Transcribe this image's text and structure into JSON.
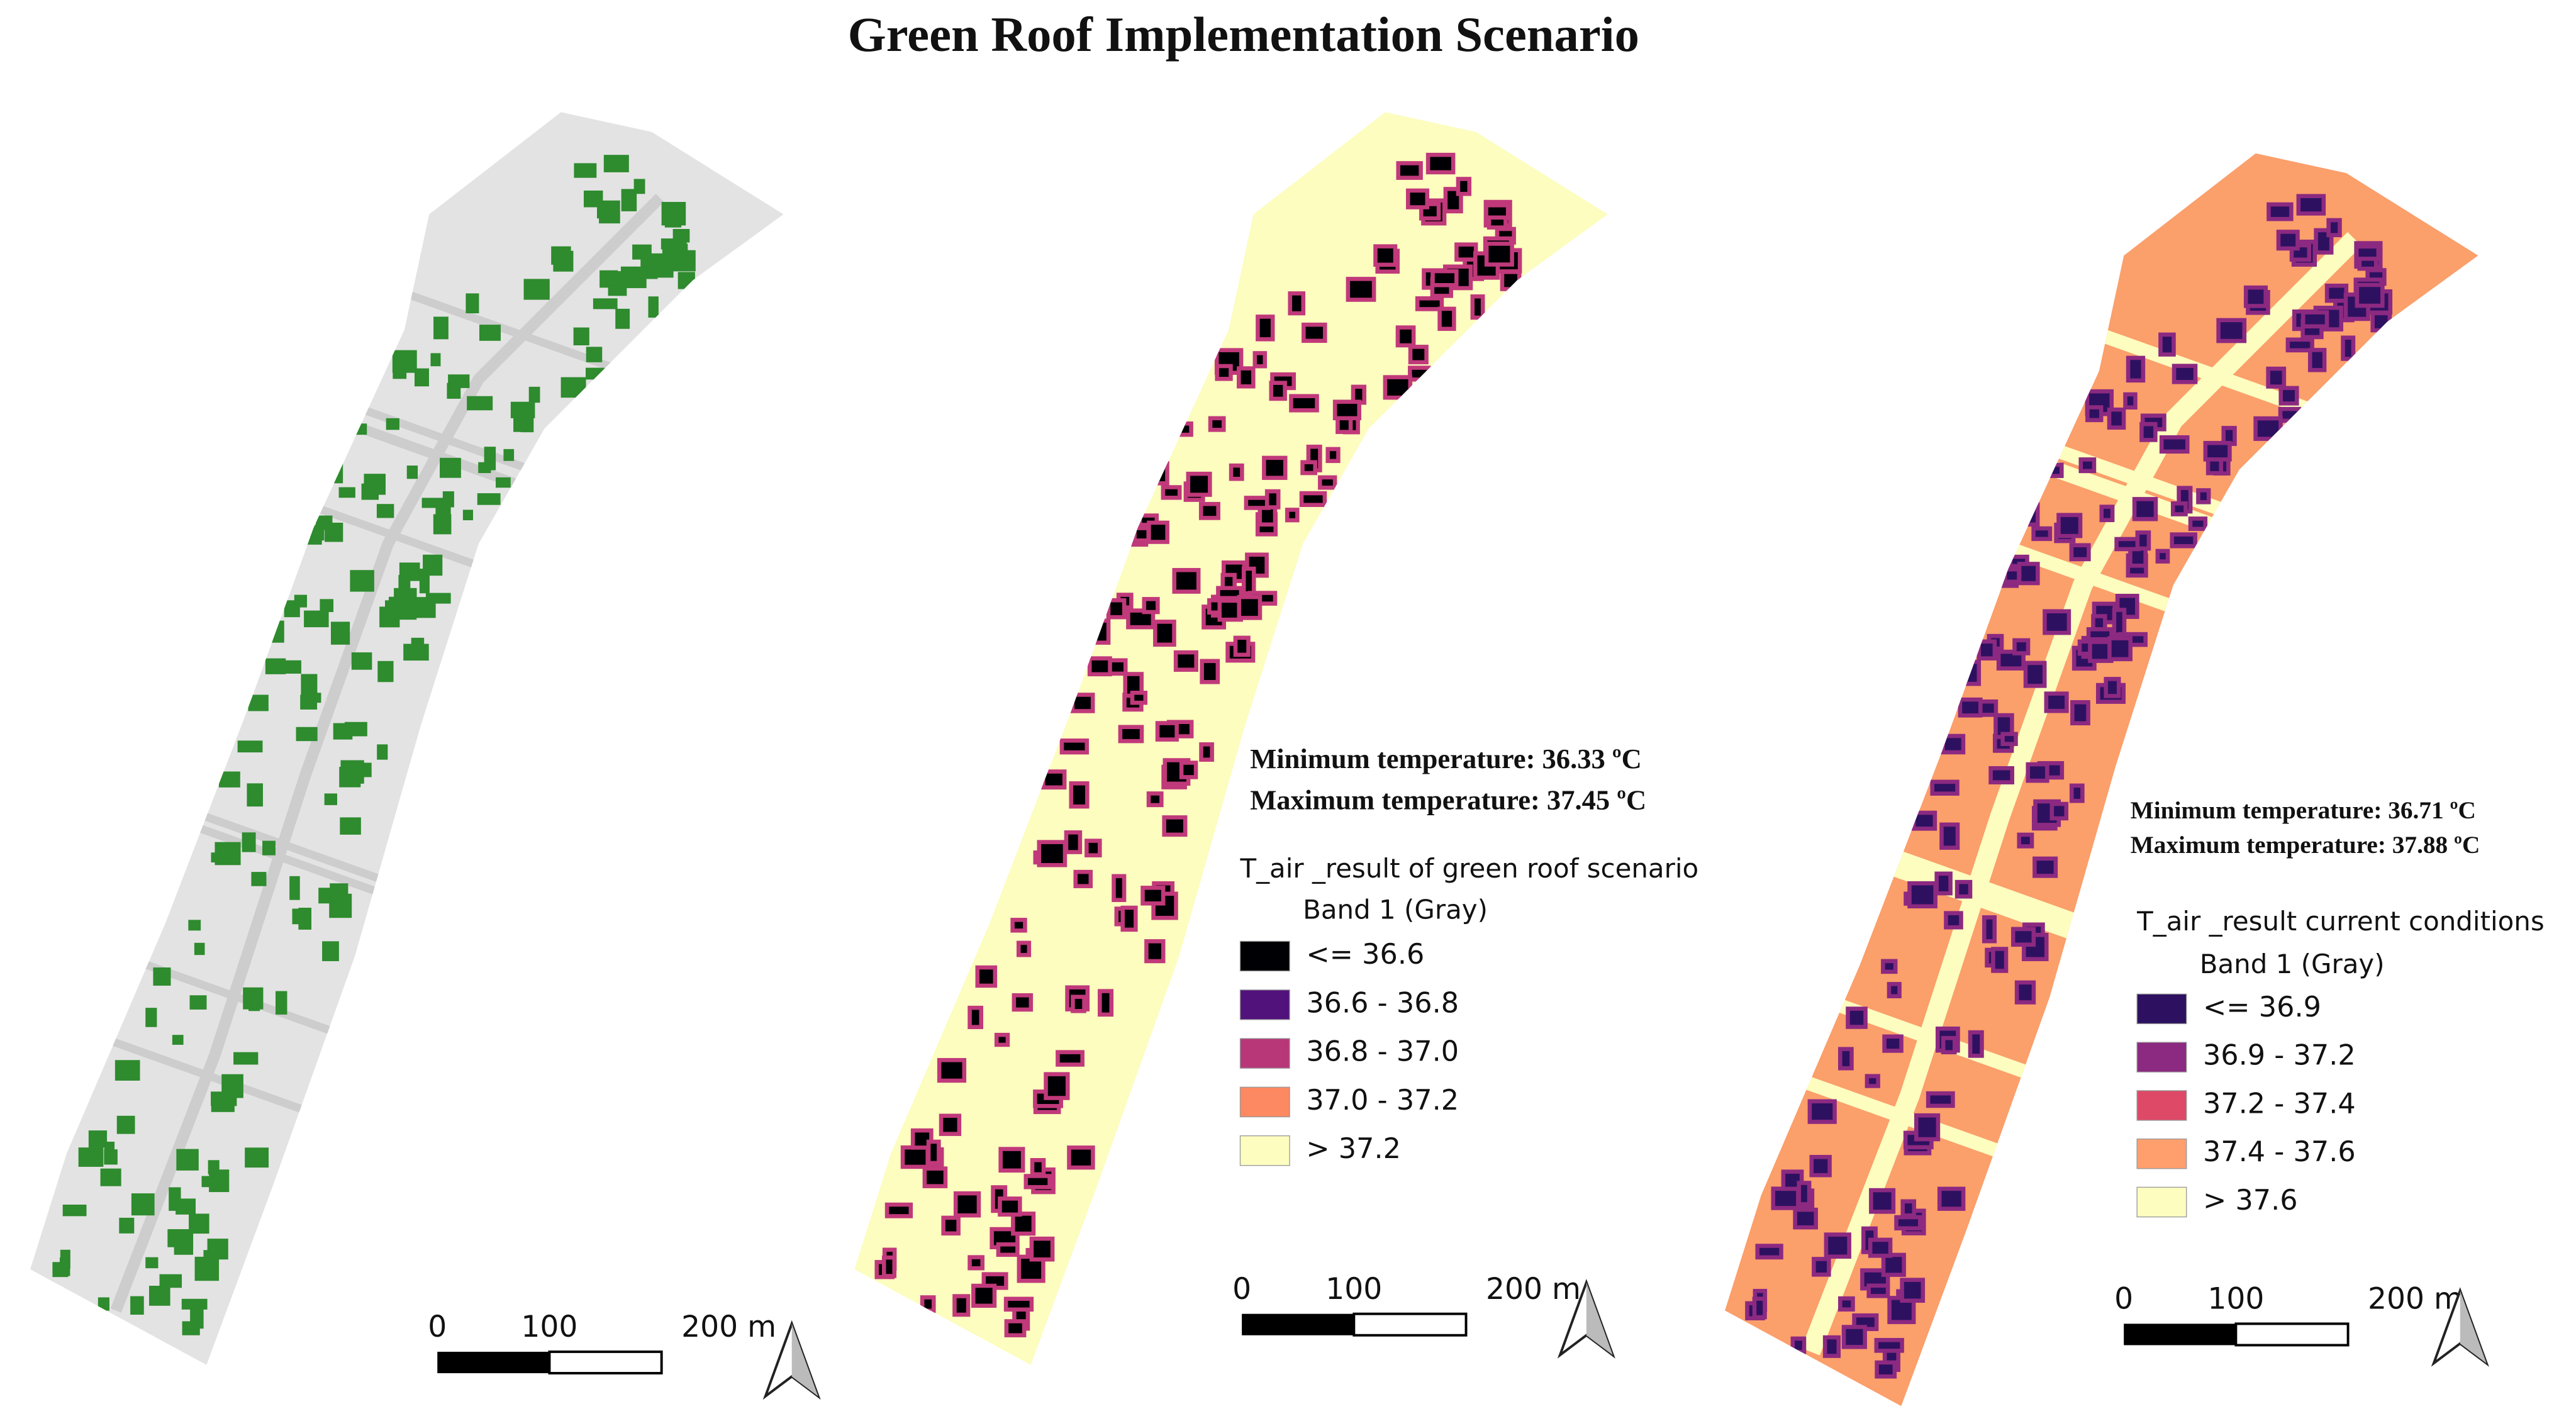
{
  "title": "Green Roof Implementation Scenario",
  "panels": [
    {
      "scale_bar": {
        "labels": [
          "0",
          "100",
          "200 m"
        ]
      }
    },
    {
      "stats": [
        "Minimum temperature: 36.33 ºC",
        "Maximum temperature: 37.45 ºC"
      ],
      "legend": {
        "title": "T_air _result of green roof scenario",
        "subtitle": "Band 1 (Gray)",
        "items": [
          {
            "label": "<= 36.6",
            "color": "#000004"
          },
          {
            "label": "36.6 - 36.8",
            "color": "#51127c"
          },
          {
            "label": "36.8 - 37.0",
            "color": "#b73779"
          },
          {
            "label": "37.0 - 37.2",
            "color": "#fc8961"
          },
          {
            "label": "> 37.2",
            "color": "#fcfdbf"
          }
        ]
      },
      "scale_bar": {
        "labels": [
          "0",
          "100",
          "200 m"
        ]
      }
    },
    {
      "stats": [
        "Minimum temperature: 36.71 ºC",
        "Maximum temperature: 37.88 ºC"
      ],
      "legend": {
        "title": "T_air _result current conditions",
        "subtitle": "Band 1 (Gray)",
        "items": [
          {
            "label": "<= 36.9",
            "color": "#2d1160"
          },
          {
            "label": "36.9 - 37.2",
            "color": "#8c2981"
          },
          {
            "label": "37.2 - 37.4",
            "color": "#de4968"
          },
          {
            "label": "37.4 - 37.6",
            "color": "#fe9f6d"
          },
          {
            "label": "> 37.6",
            "color": "#fcfdbf"
          }
        ]
      },
      "scale_bar": {
        "labels": [
          "0",
          "100",
          "200 m"
        ]
      }
    }
  ]
}
